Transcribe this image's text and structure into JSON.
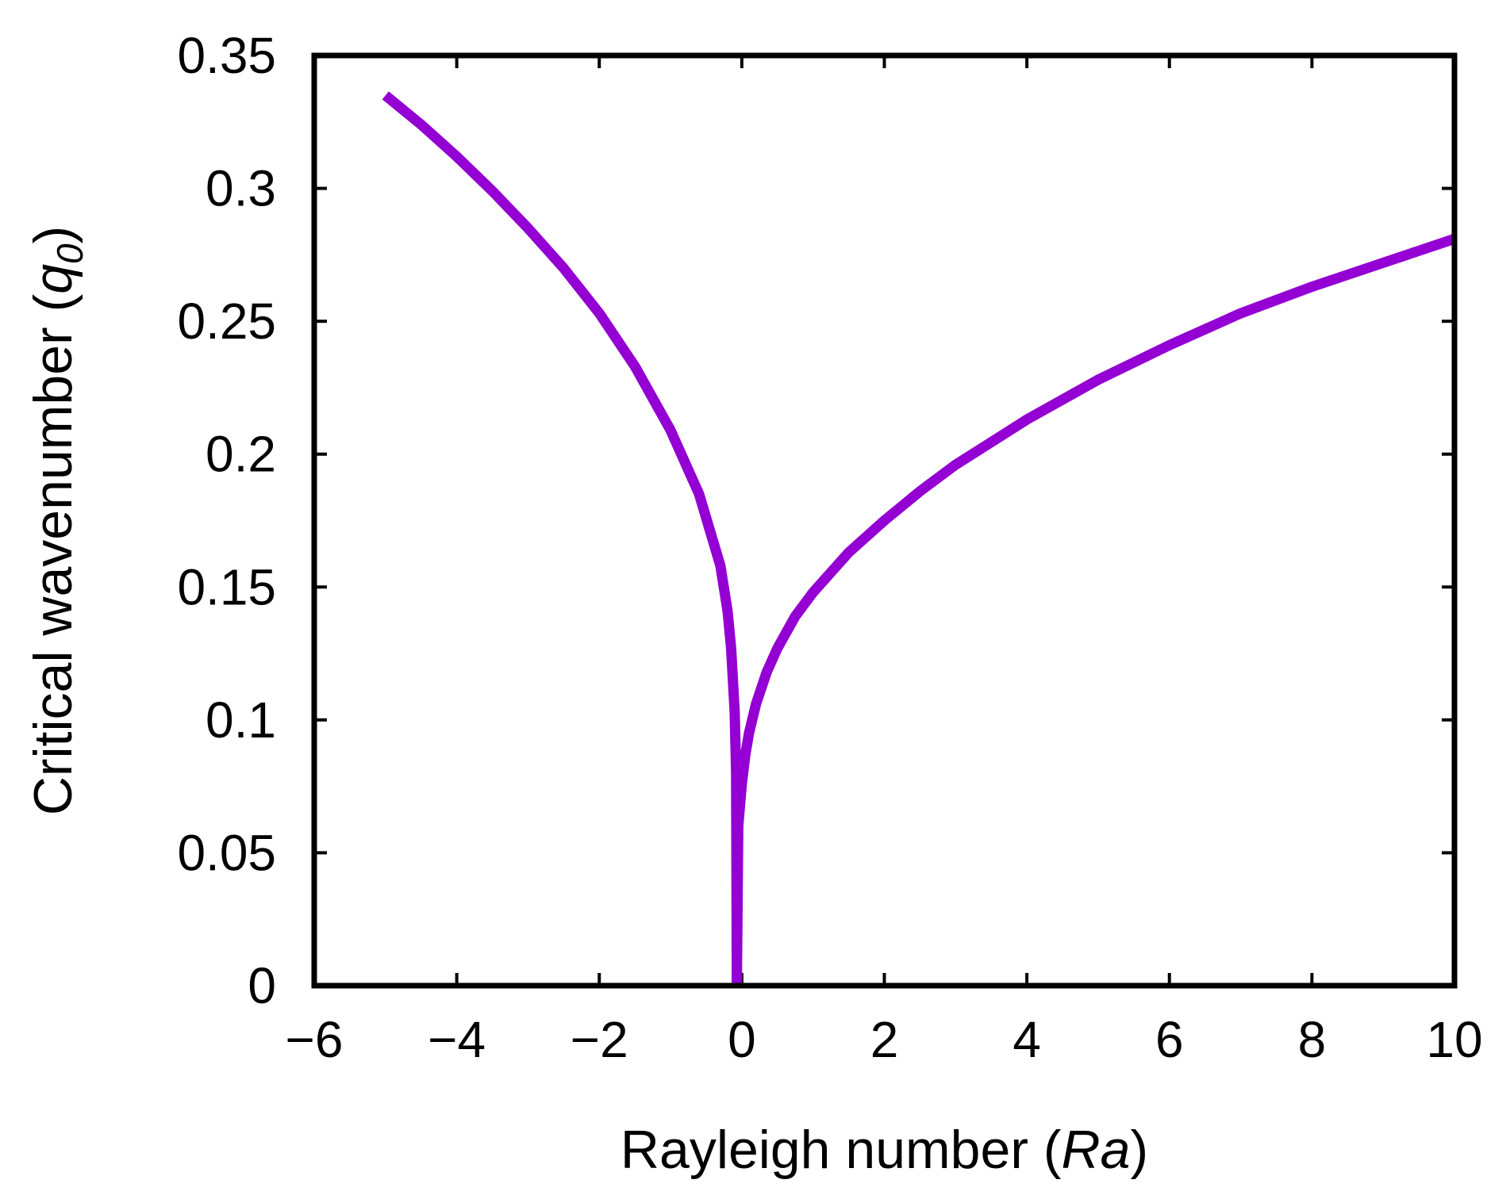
{
  "chart_data": {
    "type": "line",
    "xlabel": "Rayleigh number (Ra)",
    "xlabel_parts": {
      "prefix": "Rayleigh number (",
      "italic": "Ra",
      "suffix": ")"
    },
    "ylabel": "Critical wavenumber (q0)",
    "ylabel_parts": {
      "prefix": "Critical wavenumber (",
      "italic": "q",
      "subscript": "0",
      "suffix": ")"
    },
    "xlim": [
      -6,
      10
    ],
    "ylim": [
      0,
      0.35
    ],
    "xticks": [
      -6,
      -4,
      -2,
      0,
      2,
      4,
      6,
      8,
      10
    ],
    "xtick_labels": [
      "−6",
      "−4",
      "−2",
      "0",
      "2",
      "4",
      "6",
      "8",
      "10"
    ],
    "yticks": [
      0,
      0.05,
      0.1,
      0.15,
      0.2,
      0.25,
      0.3,
      0.35
    ],
    "ytick_labels": [
      "0",
      "0.05",
      "0.1",
      "0.15",
      "0.2",
      "0.25",
      "0.3",
      "0.35"
    ],
    "grid": false,
    "legend": "none",
    "series": [
      {
        "color": "#9400d3",
        "segments": [
          {
            "x": [
              -5.0,
              -4.5,
              -4.0,
              -3.5,
              -3.0,
              -2.5,
              -2.0,
              -1.5,
              -1.0,
              -0.6,
              -0.3,
              -0.2,
              -0.15,
              -0.1,
              -0.08,
              -0.07
            ],
            "y": [
              0.335,
              0.324,
              0.312,
              0.299,
              0.285,
              0.27,
              0.253,
              0.233,
              0.209,
              0.185,
              0.158,
              0.141,
              0.127,
              0.103,
              0.08,
              0.0
            ]
          },
          {
            "x": [
              -0.07,
              -0.05,
              0.0,
              0.05,
              0.1,
              0.2,
              0.35,
              0.5,
              0.75,
              1.0,
              1.5,
              2.0,
              2.5,
              3.0,
              4.0,
              5.0,
              6.0,
              7.0,
              8.0,
              9.0,
              10.0
            ],
            "y": [
              0.0,
              0.06,
              0.076,
              0.087,
              0.095,
              0.106,
              0.118,
              0.127,
              0.139,
              0.148,
              0.163,
              0.175,
              0.186,
              0.196,
              0.213,
              0.228,
              0.241,
              0.253,
              0.263,
              0.272,
              0.281
            ]
          }
        ]
      }
    ]
  }
}
